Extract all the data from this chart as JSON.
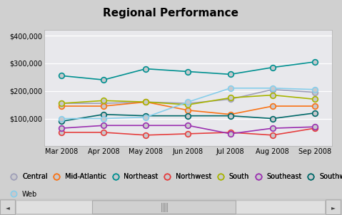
{
  "title": "Regional Performance",
  "x_labels": [
    "Mar 2008",
    "Apr 2008",
    "May 2008",
    "Jun 2008",
    "Jul 2008",
    "Aug 2008",
    "Sep 2008"
  ],
  "series": {
    "Central": {
      "color": "#a0a0b8",
      "line_color": "#a0a0b8",
      "values": [
        155000,
        155000,
        160000,
        155000,
        170000,
        205000,
        195000
      ]
    },
    "Mid-Atlantic": {
      "color": "#f97316",
      "line_color": "#f97316",
      "values": [
        145000,
        145000,
        160000,
        130000,
        115000,
        145000,
        145000
      ]
    },
    "Northeast": {
      "color": "#009090",
      "line_color": "#009090",
      "values": [
        255000,
        240000,
        280000,
        270000,
        260000,
        285000,
        305000
      ]
    },
    "Northwest": {
      "color": "#e53e3e",
      "line_color": "#e53e3e",
      "values": [
        50000,
        50000,
        40000,
        45000,
        50000,
        40000,
        65000
      ]
    },
    "South": {
      "color": "#a8b400",
      "line_color": "#a8b400",
      "values": [
        155000,
        165000,
        160000,
        150000,
        175000,
        185000,
        170000
      ]
    },
    "Southeast": {
      "color": "#9b30b0",
      "line_color": "#9b30b0",
      "values": [
        65000,
        75000,
        75000,
        75000,
        45000,
        65000,
        70000
      ]
    },
    "Southwest": {
      "color": "#006868",
      "line_color": "#006868",
      "values": [
        90000,
        115000,
        110000,
        110000,
        110000,
        100000,
        120000
      ]
    },
    "Web": {
      "color": "#87ceeb",
      "line_color": "#87ceeb",
      "values": [
        100000,
        100000,
        105000,
        160000,
        210000,
        210000,
        205000
      ]
    }
  },
  "ylim": [
    0,
    420000
  ],
  "yticks": [
    100000,
    200000,
    300000,
    400000
  ],
  "background_color": "#d0d0d0",
  "plot_bg_color": "#e8e8ec",
  "title_fontsize": 11,
  "legend_fontsize": 7,
  "legend_order": [
    "Central",
    "Mid-Atlantic",
    "Northeast",
    "Northwest",
    "South",
    "Southeast",
    "Southwest",
    "Web"
  ]
}
